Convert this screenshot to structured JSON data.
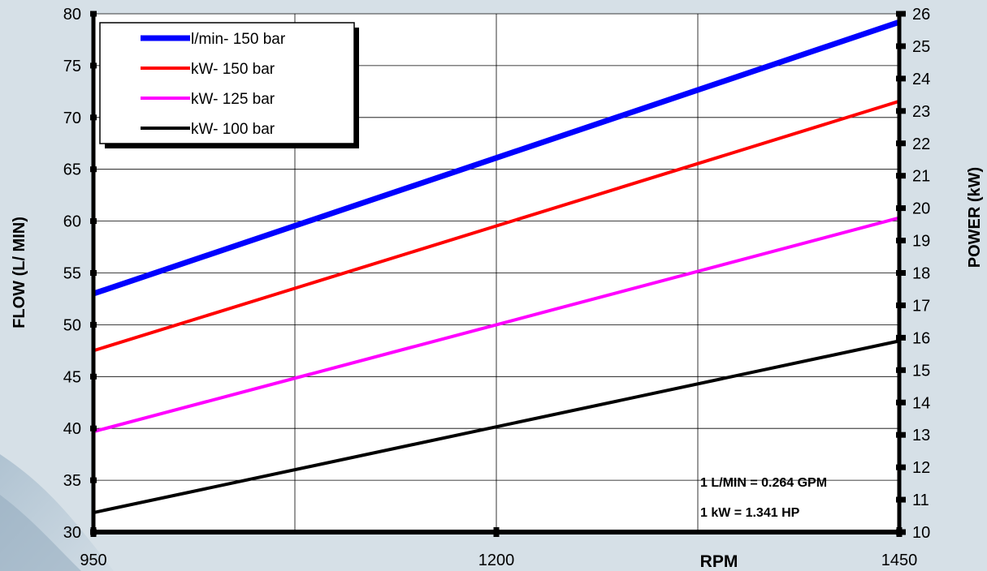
{
  "chart_data": {
    "type": "line",
    "x": [
      950,
      1450
    ],
    "xlabel": "RPM",
    "xlim": [
      950,
      1450
    ],
    "x_ticks": [
      "950",
      "1200",
      "1450"
    ],
    "ylabel_left": "FLOW  (L/ MIN)",
    "ylim_left": [
      30,
      80
    ],
    "y_ticks_left": [
      "30",
      "35",
      "40",
      "45",
      "50",
      "55",
      "60",
      "65",
      "70",
      "75",
      "80"
    ],
    "ylabel_right": "POWER  (kW)",
    "ylim_right": [
      10,
      26
    ],
    "y_ticks_right": [
      "10",
      "11",
      "12",
      "13",
      "14",
      "15",
      "16",
      "17",
      "18",
      "19",
      "20",
      "21",
      "22",
      "23",
      "24",
      "25",
      "26"
    ],
    "grid": true,
    "legend_position": "top-left",
    "series": [
      {
        "name": "l/min- 150 bar",
        "axis": "left",
        "color": "#0000ff",
        "values": [
          53,
          79.2
        ]
      },
      {
        "name": "kW- 150 bar",
        "axis": "right",
        "color": "#ff0000",
        "values": [
          15.6,
          23.3
        ]
      },
      {
        "name": "kW- 125 bar",
        "axis": "right",
        "color": "#ff00ff",
        "values": [
          13.1,
          19.7
        ]
      },
      {
        "name": "kW- 100 bar",
        "axis": "right",
        "color": "#000000",
        "values": [
          10.6,
          15.9
        ]
      }
    ],
    "annotations": [
      "1 L/MIN = 0.264 GPM",
      "1 kW = 1.341 HP"
    ]
  }
}
